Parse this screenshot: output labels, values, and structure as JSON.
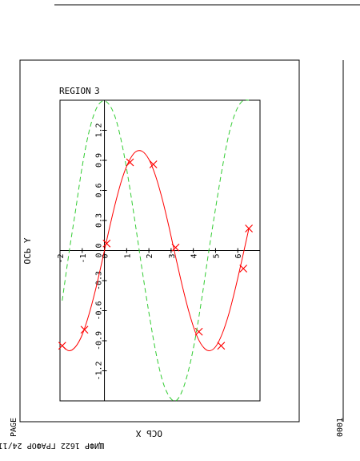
{
  "header": {
    "region_label": "REGION",
    "region_number": "3",
    "page_label": "PAGE",
    "page_number": "0001",
    "footer_text": "ЩИФР 1622 ГРАФОР 24/11"
  },
  "chart_data": {
    "type": "line",
    "title": "",
    "xlabel": "OCЬ X",
    "ylabel": "OCЬ Y",
    "xlim": [
      -2,
      7
    ],
    "ylim": [
      -1.5,
      1.5
    ],
    "x_ticks": [
      -2,
      -1,
      0,
      1,
      2,
      3,
      4,
      5,
      6
    ],
    "x_tick_labels": [
      "-2",
      "-1",
      "0",
      "1",
      "2",
      "3",
      "4",
      "5",
      "6"
    ],
    "y_ticks": [
      -1.2,
      -0.9,
      -0.6,
      -0.3,
      0,
      0.3,
      0.6,
      0.9,
      1.2
    ],
    "y_tick_labels": [
      "-1.2",
      "-0.9",
      "-0.6",
      "-0.3",
      "0.0",
      "0.3",
      "0.6",
      "0.9",
      "1.2"
    ],
    "grid": false,
    "legend": "none",
    "series": [
      {
        "style": "solid",
        "color": "#ff0000",
        "curve": [
          [
            -1.9,
            -0.95
          ],
          [
            -1.6,
            -1.0
          ],
          [
            -1.3,
            -0.96
          ],
          [
            -1.0,
            -0.84
          ],
          [
            -0.7,
            -0.64
          ],
          [
            -0.4,
            -0.39
          ],
          [
            -0.1,
            -0.1
          ],
          [
            0.2,
            0.2
          ],
          [
            0.5,
            0.48
          ],
          [
            0.8,
            0.72
          ],
          [
            1.1,
            0.89
          ],
          [
            1.4,
            0.985
          ],
          [
            1.7,
            0.99
          ],
          [
            2.0,
            0.91
          ],
          [
            2.3,
            0.745
          ],
          [
            2.6,
            0.515
          ],
          [
            2.9,
            0.24
          ],
          [
            3.2,
            -0.06
          ],
          [
            3.5,
            -0.35
          ],
          [
            3.8,
            -0.61
          ],
          [
            4.1,
            -0.82
          ],
          [
            4.4,
            -0.95
          ],
          [
            4.7,
            -1.0
          ],
          [
            5.0,
            -0.96
          ],
          [
            5.3,
            -0.83
          ],
          [
            5.6,
            -0.63
          ],
          [
            5.9,
            -0.37
          ],
          [
            6.2,
            -0.08
          ],
          [
            6.5,
            0.22
          ]
        ],
        "markers": [
          [
            -1.9,
            -0.95
          ],
          [
            -0.9,
            -0.79
          ],
          [
            0.1,
            0.07
          ],
          [
            1.15,
            0.88
          ],
          [
            2.2,
            0.86
          ],
          [
            3.2,
            0.03
          ],
          [
            4.25,
            -0.81
          ],
          [
            5.25,
            -0.95
          ],
          [
            6.25,
            -0.18
          ],
          [
            6.5,
            0.22
          ]
        ],
        "marker": "x"
      },
      {
        "style": "dashed",
        "color": "#33cc33",
        "curve": [
          [
            -1.9,
            -0.5
          ],
          [
            -1.6,
            -0.03
          ],
          [
            -1.3,
            0.4
          ],
          [
            -1.0,
            0.84
          ],
          [
            -0.7,
            1.18
          ],
          [
            -0.4,
            1.4
          ],
          [
            -0.1,
            1.49
          ],
          [
            0.2,
            1.46
          ],
          [
            0.5,
            1.32
          ],
          [
            0.8,
            1.05
          ],
          [
            1.1,
            0.68
          ],
          [
            1.4,
            0.25
          ],
          [
            1.7,
            -0.2
          ],
          [
            2.0,
            -0.62
          ],
          [
            2.3,
            -1.0
          ],
          [
            2.6,
            -1.29
          ],
          [
            2.9,
            -1.45
          ],
          [
            3.2,
            -1.5
          ],
          [
            3.5,
            -1.4
          ],
          [
            3.8,
            -1.18
          ],
          [
            4.1,
            -0.86
          ],
          [
            4.4,
            -0.45
          ],
          [
            4.7,
            0.0
          ],
          [
            5.0,
            0.42
          ],
          [
            5.3,
            0.82
          ],
          [
            5.6,
            1.16
          ],
          [
            5.9,
            1.38
          ],
          [
            6.2,
            1.49
          ],
          [
            6.5,
            1.5
          ]
        ]
      }
    ]
  }
}
